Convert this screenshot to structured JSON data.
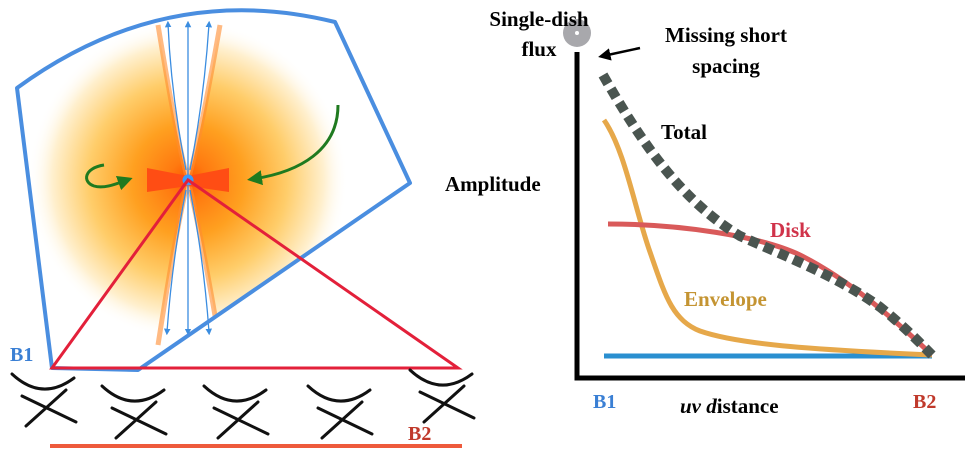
{
  "left_panel": {
    "baseline_start_label": "B1",
    "baseline_end_label": "B2",
    "colors": {
      "field_outline": "#4a8ee0",
      "triangle": "#e3203a",
      "baseline_bar": "#ee5a3c",
      "b1": "#3a7fd4",
      "b2": "#c0392b",
      "rotation_arrow": "#1f7a1f",
      "outflow": "#3b8de0",
      "disk": "#ff5a1a",
      "dish": "#111111"
    },
    "antenna_count": 5,
    "icons": [
      "antenna-dish-icon",
      "rotation-arrow-icon",
      "infall-arrow-icon"
    ]
  },
  "right_panel": {
    "single_dish_label_line1": "Single-dish",
    "single_dish_label_line2": "flux",
    "missing_label_line1": "Missing short",
    "missing_label_line2": "spacing",
    "y_axis_label": "Amplitude",
    "x_axis_label_italic": "uv d",
    "x_axis_label_rest": "istance",
    "x_start_label": "B1",
    "x_end_label": "B2",
    "curve_labels": {
      "total": "Total",
      "disk": "Disk",
      "envelope": "Envelope"
    },
    "colors": {
      "total": "#4a5550",
      "disk": "#d95a5a",
      "envelope": "#e6a84a",
      "baseline": "#2a8fd0",
      "single_dish_dot": "#a8a8ac",
      "disk_label": "#d0334a",
      "envelope_label": "#c49432",
      "b1": "#3a7fd4",
      "b2": "#c0392b"
    }
  }
}
